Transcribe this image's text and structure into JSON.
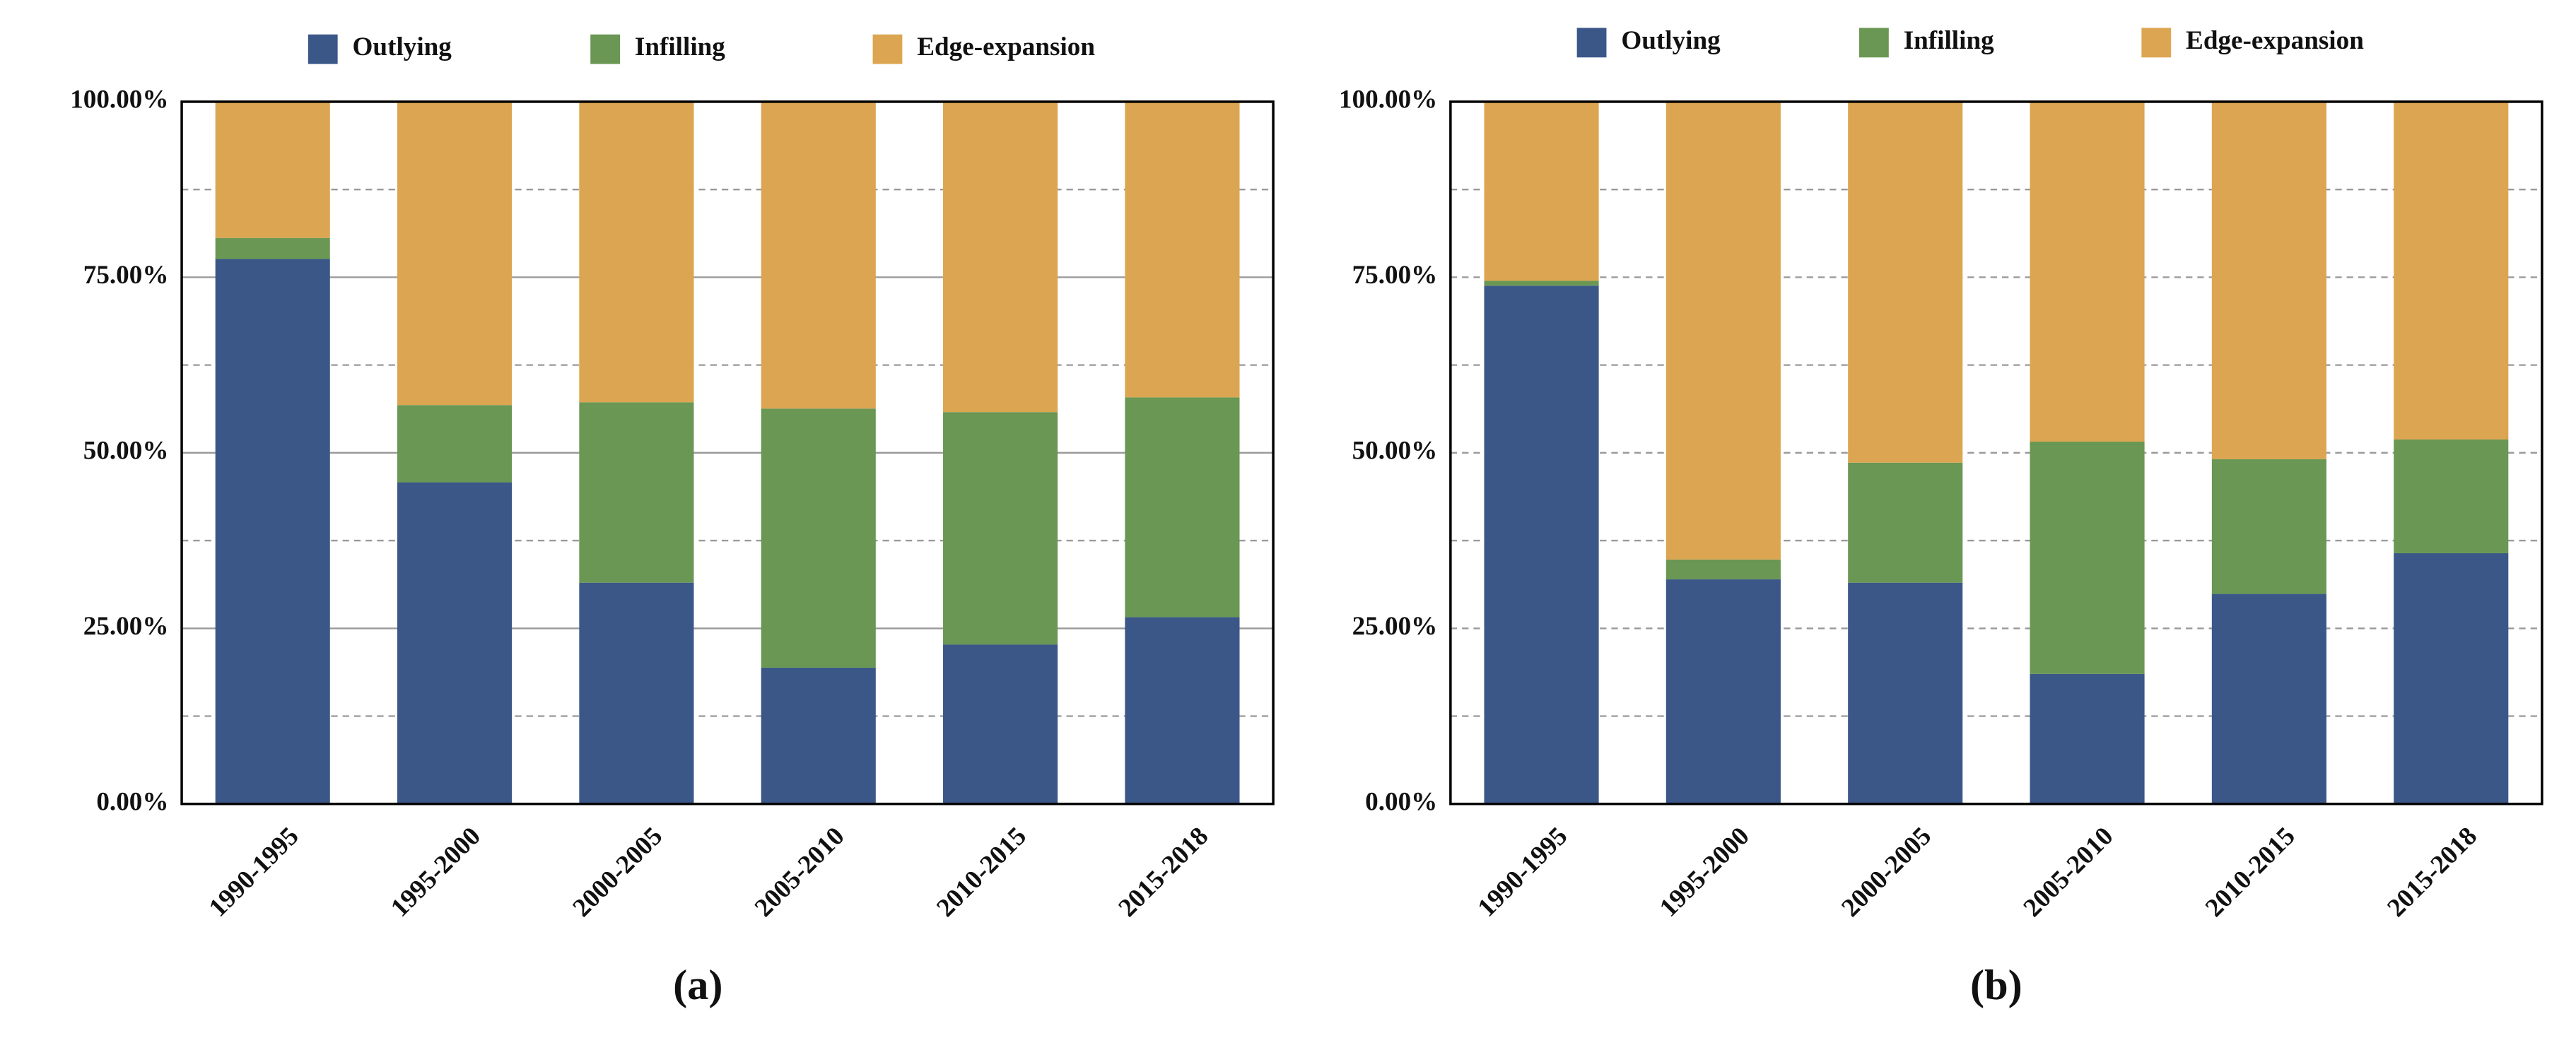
{
  "chart_data": [
    {
      "type": "stacked_bar",
      "label": "(a)",
      "categories": [
        "1990-1995",
        "1995-2000",
        "2000-2005",
        "2005-2010",
        "2010-2015",
        "2015-2018"
      ],
      "series": [
        {
          "name": "Outlying",
          "color": "#3a5788",
          "values": [
            77.6,
            45.8,
            31.5,
            19.4,
            22.7,
            26.6
          ]
        },
        {
          "name": "Infilling",
          "color": "#6a9753",
          "values": [
            3.0,
            11.0,
            25.7,
            36.9,
            33.1,
            31.3
          ]
        },
        {
          "name": "Edge-expansion",
          "color": "#dca551",
          "values": [
            19.4,
            43.2,
            42.8,
            43.7,
            44.2,
            42.1
          ]
        }
      ],
      "ylim": [
        0,
        100
      ],
      "yticks": [
        {
          "value": 0,
          "label": "0.00%"
        },
        {
          "value": 25,
          "label": "25.00%"
        },
        {
          "value": 50,
          "label": "50.00%"
        },
        {
          "value": 75,
          "label": "75.00%"
        },
        {
          "value": 100,
          "label": "100.00%"
        }
      ],
      "minor_yticks": [
        12.5,
        37.5,
        62.5,
        87.5
      ],
      "grid": true,
      "grid_style": "solid",
      "legend": "top"
    },
    {
      "type": "stacked_bar",
      "label": "(b)",
      "categories": [
        "1990-1995",
        "1995-2000",
        "2000-2005",
        "2005-2010",
        "2010-2015",
        "2015-2018"
      ],
      "series": [
        {
          "name": "Outlying",
          "color": "#3a5788",
          "values": [
            73.8,
            32.0,
            31.5,
            18.5,
            29.9,
            35.7
          ]
        },
        {
          "name": "Infilling",
          "color": "#6a9753",
          "values": [
            0.7,
            2.8,
            17.1,
            33.1,
            19.2,
            16.2
          ]
        },
        {
          "name": "Edge-expansion",
          "color": "#dca551",
          "values": [
            25.5,
            65.2,
            51.4,
            48.4,
            50.9,
            48.1
          ]
        }
      ],
      "ylim": [
        0,
        100
      ],
      "yticks": [
        {
          "value": 0,
          "label": "0.00%"
        },
        {
          "value": 25,
          "label": "25.00%"
        },
        {
          "value": 50,
          "label": "50.00%"
        },
        {
          "value": 75,
          "label": "75.00%"
        },
        {
          "value": 100,
          "label": "100.00%"
        }
      ],
      "minor_yticks": [
        12.5,
        37.5,
        62.5,
        87.5
      ],
      "grid": true,
      "grid_style": "dashed",
      "legend": "top"
    }
  ]
}
